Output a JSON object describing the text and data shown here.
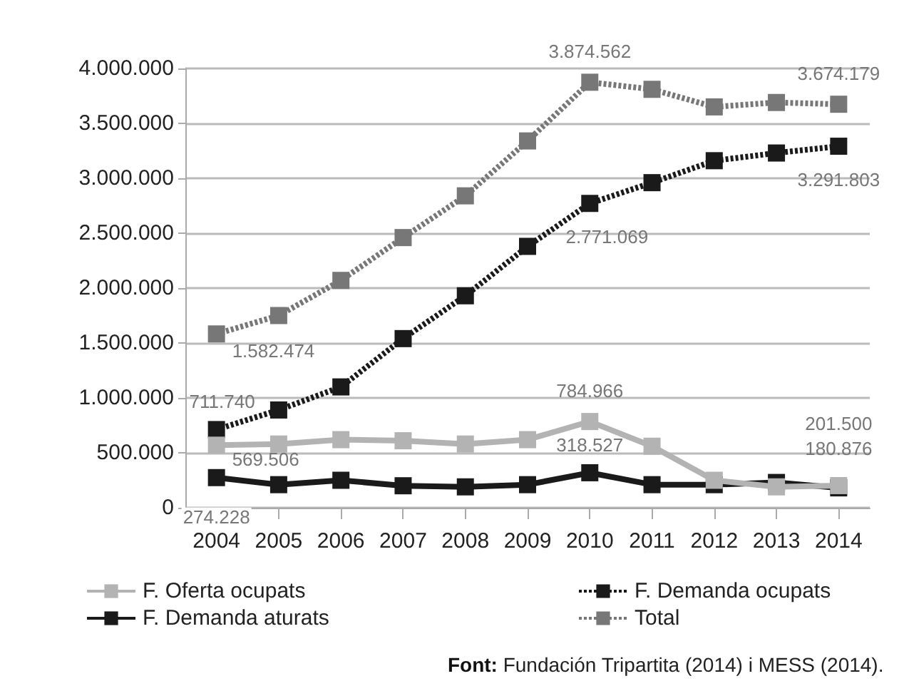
{
  "chart_data": {
    "type": "line",
    "categories": [
      "2004",
      "2005",
      "2006",
      "2007",
      "2008",
      "2009",
      "2010",
      "2011",
      "2012",
      "2013",
      "2014"
    ],
    "series": [
      {
        "name": "F. Oferta ocupats",
        "color": "#b3b3b3",
        "line_style": "solid",
        "values": [
          569506,
          580000,
          620000,
          610000,
          580000,
          620000,
          784966,
          560000,
          250000,
          190000,
          201500
        ],
        "value_labels": [
          "569.506",
          null,
          null,
          null,
          null,
          null,
          "784.966",
          null,
          null,
          null,
          "201.500"
        ]
      },
      {
        "name": "F. Demanda ocupats",
        "color": "#1a1a1a",
        "line_style": "dotted",
        "values": [
          711740,
          890000,
          1100000,
          1540000,
          1930000,
          2380000,
          2771069,
          2960000,
          3160000,
          3230000,
          3291803
        ],
        "value_labels": [
          "711.740",
          null,
          null,
          null,
          null,
          null,
          "2.771.069",
          null,
          null,
          null,
          "3.291.803"
        ]
      },
      {
        "name": "F. Demanda aturats",
        "color": "#1a1a1a",
        "line_style": "solid",
        "values": [
          274228,
          210000,
          250000,
          200000,
          190000,
          210000,
          318527,
          210000,
          210000,
          230000,
          180876
        ],
        "value_labels": [
          "274.228",
          null,
          null,
          null,
          null,
          null,
          "318.527",
          null,
          null,
          null,
          "180.876"
        ]
      },
      {
        "name": "Total",
        "color": "#777777",
        "line_style": "dotted",
        "values": [
          1582474,
          1750000,
          2070000,
          2460000,
          2840000,
          3340000,
          3874562,
          3810000,
          3650000,
          3690000,
          3674179
        ],
        "value_labels": [
          "1.582.474",
          null,
          null,
          null,
          null,
          null,
          "3.874.562",
          null,
          null,
          null,
          "3.674.179"
        ]
      }
    ],
    "ylim": [
      0,
      4000000
    ],
    "yticks": [
      0,
      {
        "value": 500000,
        "label": "500.000"
      },
      {
        "value": 1000000,
        "label": "1.000.000"
      },
      {
        "value": 1500000,
        "label": "1.500.000"
      },
      {
        "value": 2000000,
        "label": "2.000.000"
      },
      {
        "value": 2500000,
        "label": "2.500.000"
      },
      {
        "value": 3000000,
        "label": "3.000.000"
      },
      {
        "value": 3500000,
        "label": "3.500.000"
      },
      {
        "value": 4000000,
        "label": "4.000.000"
      }
    ],
    "grid": "y",
    "legend": "bottom",
    "marker": "square",
    "annotations": [
      "Font: Fundación Tripartita (2014) i MESS (2014)."
    ]
  }
}
